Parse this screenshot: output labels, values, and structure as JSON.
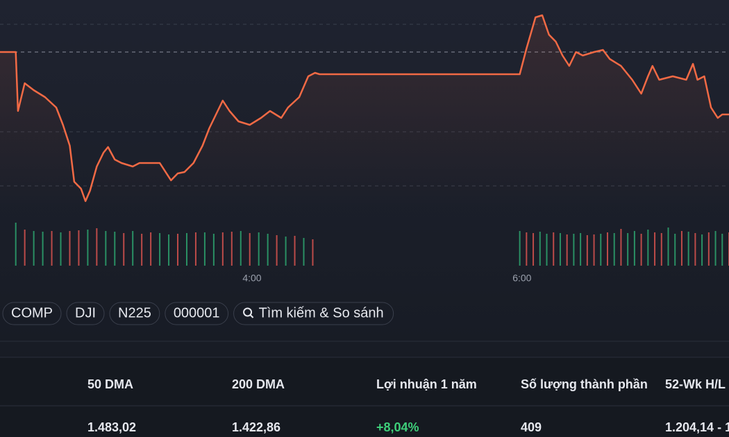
{
  "chart_data": [
    {
      "type": "line",
      "color": "#f26a45",
      "x": [
        128,
        135,
        136,
        139,
        143,
        148,
        153,
        156,
        159,
        161,
        164,
        166,
        168,
        171,
        174,
        176,
        179,
        182,
        187,
        190,
        194,
        199,
        204,
        207,
        210,
        214,
        218,
        221,
        224,
        227,
        230,
        234,
        239,
        244,
        248,
        253,
        256,
        261,
        265,
        268,
        270,
        359,
        362,
        366,
        369,
        372,
        375,
        378,
        381,
        384,
        387,
        392,
        396,
        399,
        404,
        409,
        413,
        416,
        418,
        421,
        427,
        433,
        436,
        438,
        441,
        444,
        447,
        449,
        452
      ],
      "values": [
        225,
        225,
        140,
        180,
        170,
        160,
        145,
        120,
        90,
        38,
        28,
        10,
        25,
        60,
        80,
        88,
        70,
        65,
        60,
        65,
        65,
        65,
        40,
        50,
        52,
        65,
        90,
        115,
        135,
        155,
        140,
        125,
        120,
        130,
        140,
        130,
        145,
        160,
        190,
        195,
        193,
        193,
        230,
        275,
        278,
        250,
        240,
        220,
        205,
        225,
        220,
        225,
        228,
        215,
        205,
        185,
        165,
        190,
        205,
        185,
        190,
        185,
        208,
        185,
        190,
        145,
        130,
        135,
        135
      ],
      "xlim": [
        128,
        452
      ],
      "ylim": [
        0,
        290
      ],
      "xticks": [
        {
          "value": 240,
          "label": "4:00"
        },
        {
          "value": 360,
          "label": "6:00"
        }
      ],
      "grid_lines": [
        265,
        225,
        110,
        32
      ]
    },
    {
      "type": "bar",
      "up_color": "#2ea56f",
      "down_color": "#d9534f",
      "x": [
        135,
        139,
        143,
        147,
        151,
        155,
        159,
        163,
        167,
        171,
        175,
        179,
        183,
        187,
        191,
        195,
        199,
        203,
        207,
        211,
        215,
        219,
        223,
        227,
        231,
        235,
        239,
        243,
        247,
        251,
        255,
        259,
        263,
        267,
        359,
        362,
        365,
        368,
        371,
        374,
        377,
        380,
        383,
        386,
        389,
        392,
        395,
        398,
        401,
        404,
        407,
        410,
        413,
        416,
        419,
        422,
        425,
        428,
        431,
        434,
        437,
        440,
        443,
        446,
        449,
        452
      ],
      "values": [
        62,
        52,
        50,
        49,
        50,
        48,
        50,
        51,
        52,
        54,
        50,
        49,
        47,
        50,
        46,
        48,
        47,
        45,
        46,
        47,
        48,
        48,
        46,
        48,
        49,
        50,
        47,
        48,
        46,
        44,
        42,
        43,
        40,
        38,
        50,
        48,
        47,
        49,
        46,
        48,
        47,
        45,
        46,
        47,
        44,
        45,
        46,
        48,
        47,
        53,
        47,
        50,
        46,
        52,
        48,
        47,
        55,
        46,
        50,
        49,
        47,
        45,
        48,
        50,
        46,
        48
      ],
      "up": [
        true,
        false,
        true,
        true,
        false,
        true,
        false,
        false,
        true,
        false,
        true,
        true,
        false,
        true,
        false,
        false,
        true,
        true,
        false,
        true,
        false,
        true,
        true,
        false,
        false,
        true,
        false,
        true,
        true,
        false,
        true,
        false,
        true,
        false,
        true,
        false,
        false,
        true,
        true,
        false,
        true,
        false,
        true,
        true,
        false,
        false,
        true,
        false,
        true,
        false,
        true,
        true,
        false,
        true,
        false,
        false,
        true,
        true,
        false,
        true,
        false,
        true,
        false,
        true,
        true,
        false
      ],
      "xlim": [
        128,
        452
      ],
      "ylim": [
        0,
        70
      ]
    }
  ],
  "tabs": [
    "COMP",
    "DJI",
    "N225",
    "000001",
    "Tìm kiếm & So sánh"
  ],
  "table": {
    "headers": [
      "50 DMA",
      "200 DMA",
      "Lợi nhuận 1 năm",
      "Số lượng thành phần",
      "52-Wk H/L"
    ],
    "rows": [
      [
        "1.483,02",
        "1.422,86",
        "+8,04%",
        "409",
        "1.204,14 - 1"
      ]
    ]
  }
}
